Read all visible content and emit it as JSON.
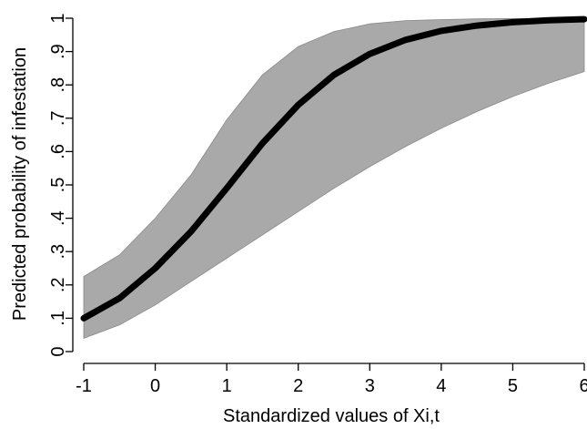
{
  "chart_data": {
    "type": "line",
    "xlabel": "Standardized values of Xi,t",
    "ylabel": "Predicted probability of infestation",
    "xlim": [
      -1,
      6
    ],
    "ylim": [
      0,
      1
    ],
    "x_ticks": [
      -1,
      0,
      1,
      2,
      3,
      4,
      5,
      6
    ],
    "x_tick_labels": [
      "-1",
      "0",
      "1",
      "2",
      "3",
      "4",
      "5",
      "6"
    ],
    "y_ticks": [
      0,
      0.1,
      0.2,
      0.3,
      0.4,
      0.5,
      0.6,
      0.7,
      0.8,
      0.9,
      1
    ],
    "y_tick_labels": [
      "0",
      ".1",
      ".2",
      ".3",
      ".4",
      ".5",
      ".6",
      ".7",
      ".8",
      ".9",
      "1"
    ],
    "grid": false,
    "x": [
      -1,
      -0.5,
      0,
      0.5,
      1,
      1.5,
      2,
      2.5,
      3,
      3.5,
      4,
      4.5,
      5,
      5.5,
      6
    ],
    "series": [
      {
        "values": [
          0.1,
          0.16,
          0.25,
          0.36,
          0.49,
          0.625,
          0.74,
          0.83,
          0.893,
          0.935,
          0.962,
          0.978,
          0.988,
          0.994,
          0.997
        ],
        "color": "#000000"
      }
    ],
    "confidence_band": {
      "lower": [
        0.04,
        0.08,
        0.14,
        0.21,
        0.28,
        0.35,
        0.42,
        0.49,
        0.555,
        0.615,
        0.67,
        0.72,
        0.765,
        0.805,
        0.84
      ],
      "upper": [
        0.225,
        0.29,
        0.4,
        0.53,
        0.695,
        0.83,
        0.915,
        0.96,
        0.983,
        0.993,
        0.996,
        0.998,
        0.999,
        0.999,
        1.0
      ],
      "color": "#a9a9a9"
    }
  }
}
